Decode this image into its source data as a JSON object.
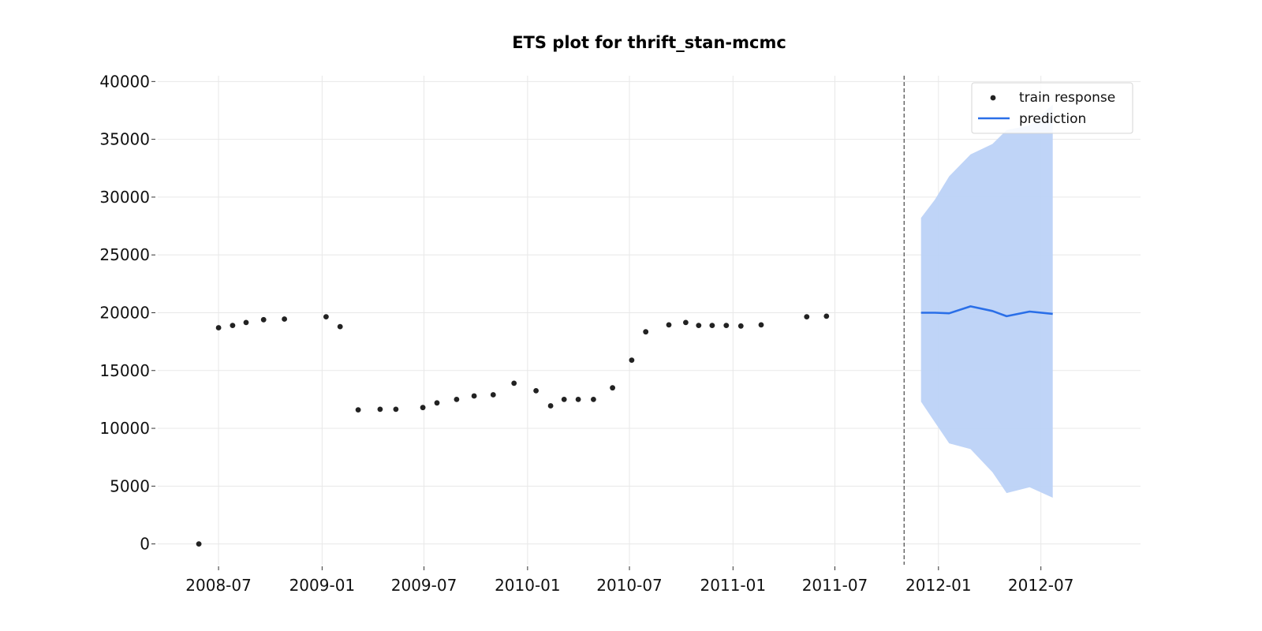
{
  "chart_data": {
    "type": "line",
    "title": "ETS plot for thrift_stan-mcmc",
    "xlabel": "",
    "ylabel": "",
    "ylim": [
      -1800,
      40500
    ],
    "xlim": [
      "2008-03-15",
      "2012-12-25"
    ],
    "x_ticks": [
      "2008-07-01",
      "2009-01-01",
      "2009-07-01",
      "2010-01-01",
      "2010-07-01",
      "2011-01-01",
      "2011-07-01",
      "2012-01-01",
      "2012-07-01"
    ],
    "x_tick_labels": [
      "2008-07",
      "2009-01",
      "2009-07",
      "2010-01",
      "2010-07",
      "2011-01",
      "2011-07",
      "2012-01",
      "2012-07"
    ],
    "y_ticks": [
      0,
      5000,
      10000,
      15000,
      20000,
      25000,
      30000,
      35000,
      40000
    ],
    "y_tick_labels": [
      "0",
      "5000",
      "10000",
      "15000",
      "20000",
      "25000",
      "30000",
      "35000",
      "40000"
    ],
    "grid": true,
    "legend": {
      "position": "top-right",
      "train_label": "train response",
      "prediction_label": "prediction"
    },
    "cutoff_date": "2011-11-01",
    "colors": {
      "train": "#222222",
      "prediction": "#2a6fe8",
      "band": "#bcd2f7",
      "cutoff": "#555555",
      "grid": "#e8e8e8"
    },
    "series": [
      {
        "name": "train response",
        "kind": "scatter",
        "points": [
          {
            "x": "2008-05-27",
            "y": 0
          },
          {
            "x": "2008-07-01",
            "y": 18700
          },
          {
            "x": "2008-07-26",
            "y": 18900
          },
          {
            "x": "2008-08-19",
            "y": 19150
          },
          {
            "x": "2008-09-19",
            "y": 19400
          },
          {
            "x": "2008-10-26",
            "y": 19450
          },
          {
            "x": "2009-01-08",
            "y": 19650
          },
          {
            "x": "2009-02-02",
            "y": 18800
          },
          {
            "x": "2009-03-06",
            "y": 11600
          },
          {
            "x": "2009-04-14",
            "y": 11650
          },
          {
            "x": "2009-05-12",
            "y": 11650
          },
          {
            "x": "2009-06-29",
            "y": 11800
          },
          {
            "x": "2009-07-24",
            "y": 12200
          },
          {
            "x": "2009-08-28",
            "y": 12500
          },
          {
            "x": "2009-09-28",
            "y": 12800
          },
          {
            "x": "2009-11-01",
            "y": 12900
          },
          {
            "x": "2009-12-08",
            "y": 13900
          },
          {
            "x": "2010-01-16",
            "y": 13250
          },
          {
            "x": "2010-02-11",
            "y": 11950
          },
          {
            "x": "2010-03-07",
            "y": 12500
          },
          {
            "x": "2010-04-01",
            "y": 12500
          },
          {
            "x": "2010-04-28",
            "y": 12500
          },
          {
            "x": "2010-06-01",
            "y": 13500
          },
          {
            "x": "2010-07-05",
            "y": 15900
          },
          {
            "x": "2010-07-30",
            "y": 18350
          },
          {
            "x": "2010-09-09",
            "y": 18950
          },
          {
            "x": "2010-10-09",
            "y": 19150
          },
          {
            "x": "2010-11-01",
            "y": 18900
          },
          {
            "x": "2010-11-25",
            "y": 18900
          },
          {
            "x": "2010-12-20",
            "y": 18900
          },
          {
            "x": "2011-01-15",
            "y": 18850
          },
          {
            "x": "2011-02-20",
            "y": 18950
          },
          {
            "x": "2011-05-12",
            "y": 19650
          },
          {
            "x": "2011-06-16",
            "y": 19700
          }
        ]
      },
      {
        "name": "prediction",
        "kind": "line",
        "points": [
          {
            "x": "2011-12-01",
            "y": 20000,
            "lower": 12300,
            "upper": 28200
          },
          {
            "x": "2011-12-26",
            "y": 20000,
            "lower": 10500,
            "upper": 29800
          },
          {
            "x": "2012-01-20",
            "y": 19950,
            "lower": 8700,
            "upper": 31800
          },
          {
            "x": "2012-02-27",
            "y": 20550,
            "lower": 8200,
            "upper": 33700
          },
          {
            "x": "2012-04-06",
            "y": 20150,
            "lower": 6200,
            "upper": 34600
          },
          {
            "x": "2012-05-01",
            "y": 19700,
            "lower": 4400,
            "upper": 35800
          },
          {
            "x": "2012-06-11",
            "y": 20100,
            "lower": 4900,
            "upper": 36200
          },
          {
            "x": "2012-07-22",
            "y": 19900,
            "lower": 4000,
            "upper": 38000
          }
        ]
      }
    ]
  }
}
